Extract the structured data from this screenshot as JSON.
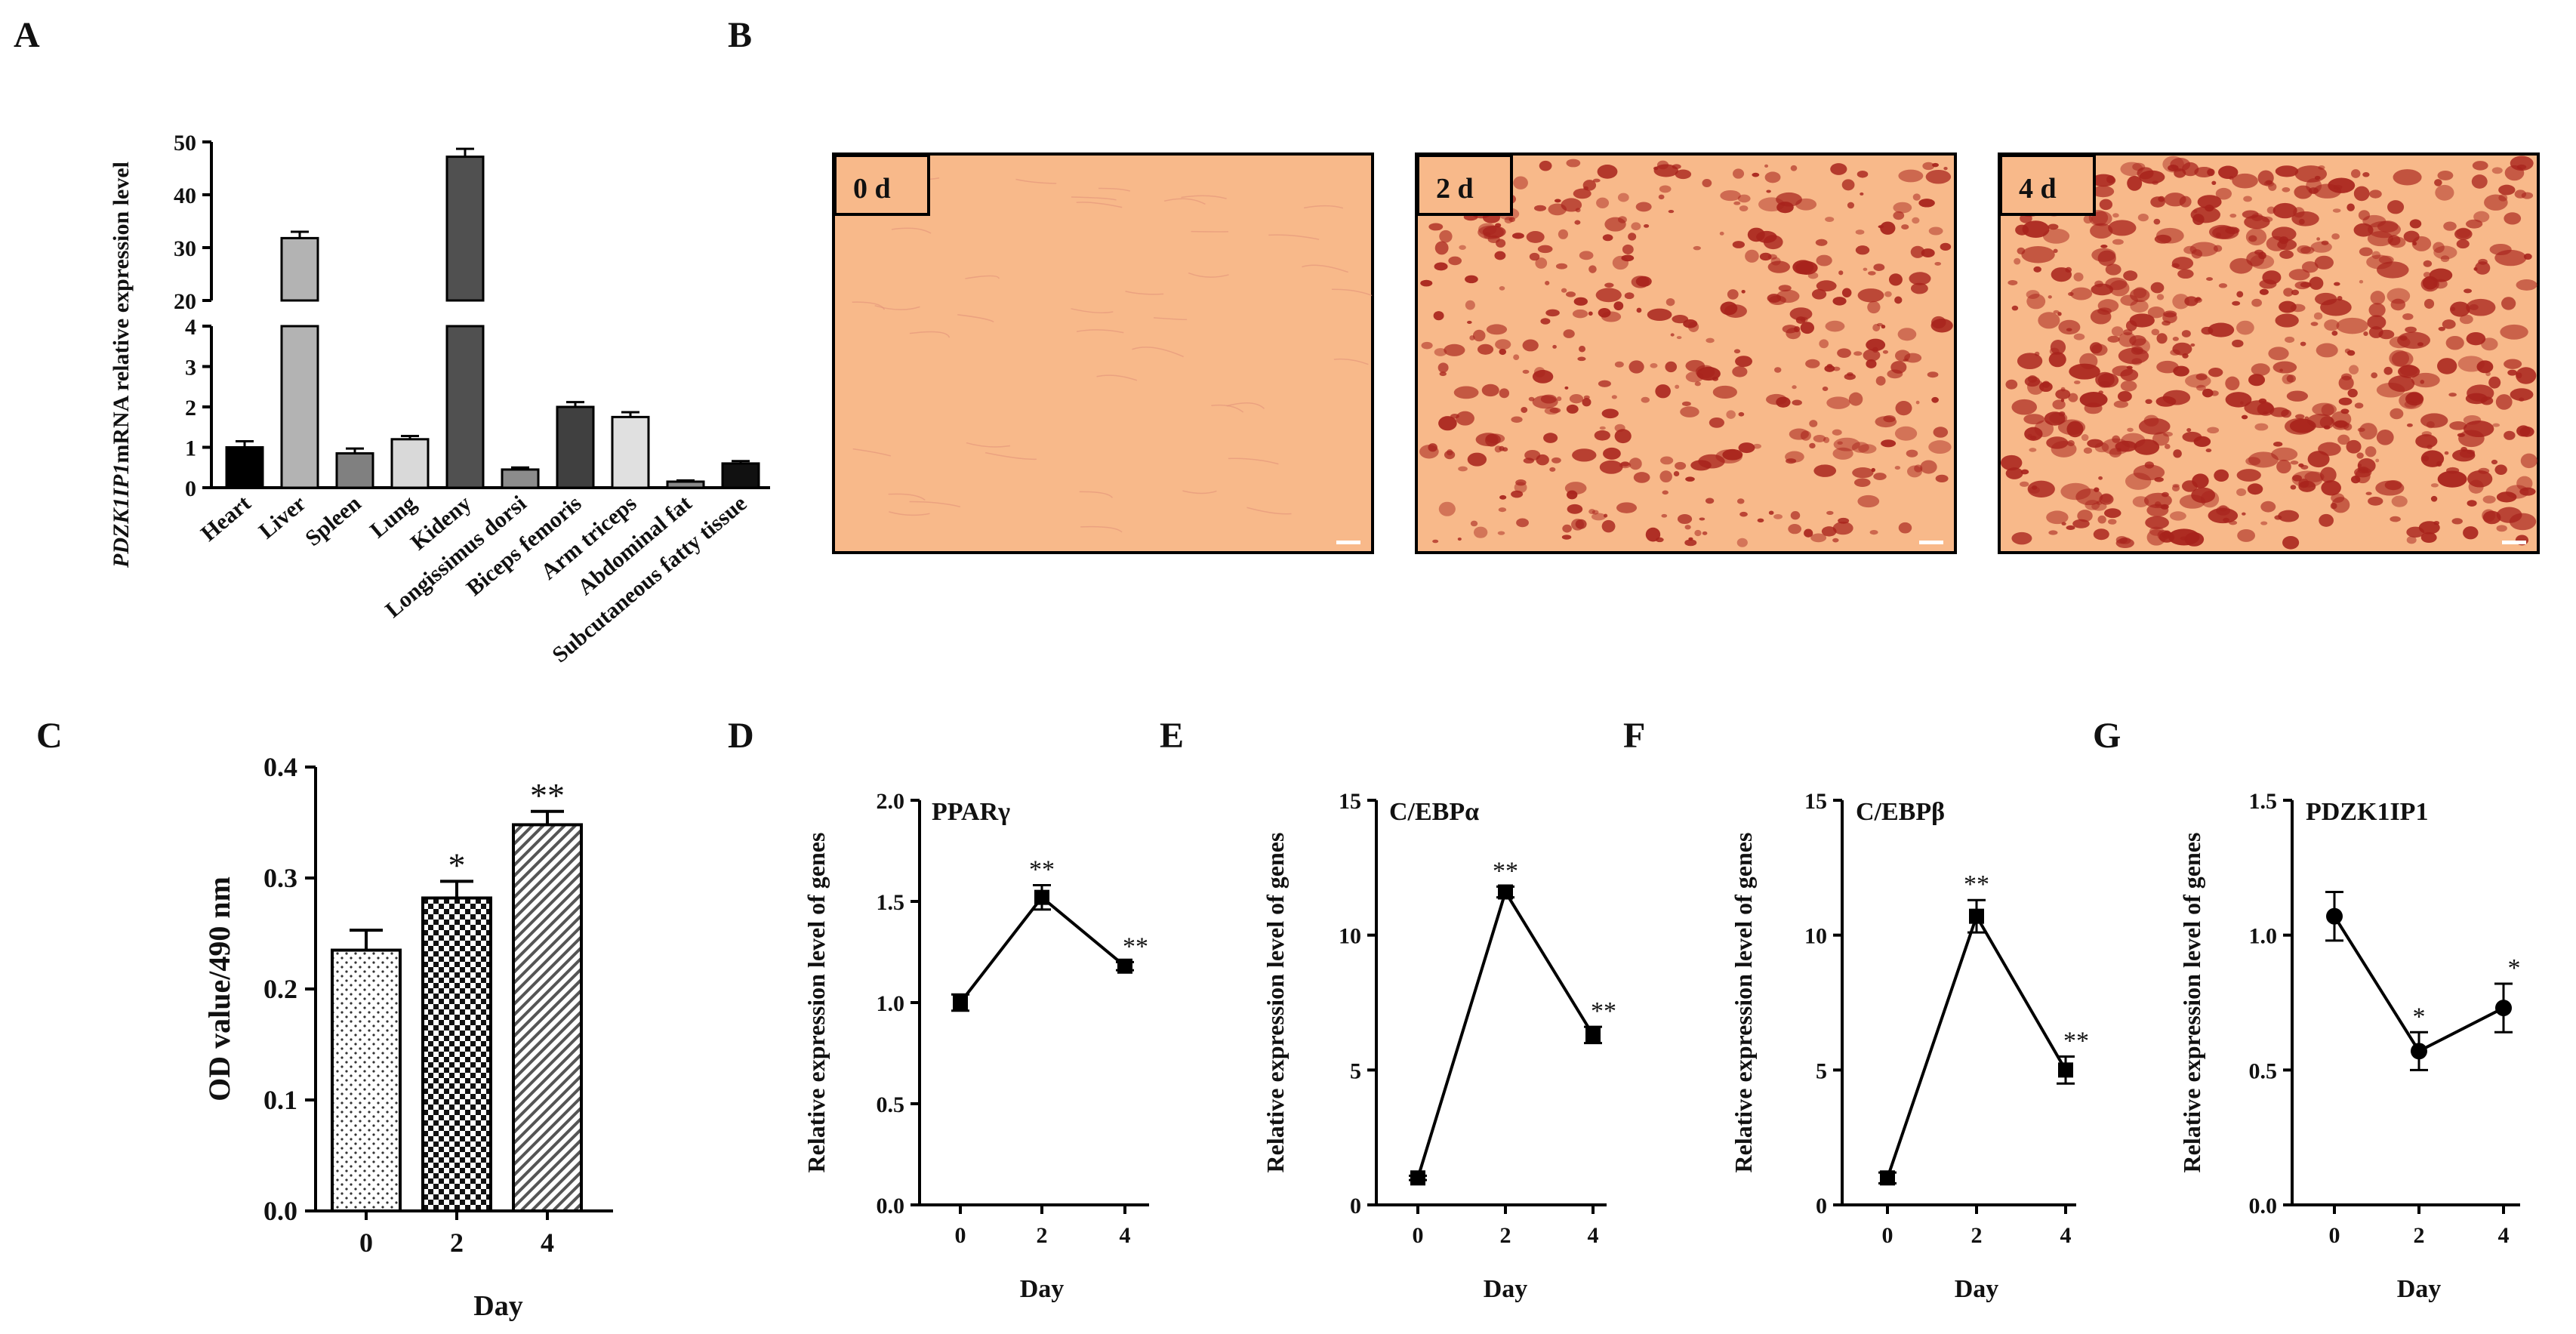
{
  "panels": {
    "A": {
      "letter": "A"
    },
    "B": {
      "letter": "B"
    },
    "C": {
      "letter": "C"
    },
    "D": {
      "letter": "D"
    },
    "E": {
      "letter": "E"
    },
    "F": {
      "letter": "F"
    },
    "G": {
      "letter": "G"
    }
  },
  "micrographs": [
    {
      "label": "0 d",
      "stain_level": 0.02
    },
    {
      "label": "2 d",
      "stain_level": 0.6
    },
    {
      "label": "4 d",
      "stain_level": 0.9
    }
  ],
  "colors": {
    "culture_background": "#f8b98a",
    "stain": "#a8231c",
    "axis": "#111111"
  },
  "chart_data": [
    {
      "id": "A",
      "type": "bar",
      "ylabel_italic": "PDZK1IP1",
      "ylabel_rest": "mRNA relative expression level",
      "broken_axis": true,
      "lower_range": [
        0,
        4
      ],
      "upper_range": [
        20,
        50
      ],
      "lower_ticks": [
        "0",
        "1",
        "2",
        "3",
        "4"
      ],
      "upper_ticks": [
        "20",
        "30",
        "40",
        "50"
      ],
      "categories": [
        "Heart",
        "Liver",
        "Spleen",
        "Lung",
        "Kideny",
        "Longissimus dorsi",
        "Biceps femoris",
        "Arm triceps",
        "Abdominal fat",
        "Subcutaneous fatty tissue"
      ],
      "values": [
        1.0,
        31.8,
        0.85,
        1.2,
        47.2,
        0.45,
        2.0,
        1.75,
        0.15,
        0.6
      ],
      "errors": [
        0.15,
        1.2,
        0.12,
        0.08,
        1.5,
        0.05,
        0.12,
        0.12,
        0.03,
        0.06
      ],
      "fills": [
        "#000000",
        "#b3b3b3",
        "#808080",
        "#d9d9d9",
        "#505050",
        "#8c8c8c",
        "#404040",
        "#e0e0e0",
        "#8a8a8a",
        "#111111"
      ]
    },
    {
      "id": "C",
      "type": "bar",
      "xlabel": "Day",
      "ylabel": "OD value/490 nm",
      "ylim": [
        0,
        0.4
      ],
      "yticks": [
        "0.0",
        "0.1",
        "0.2",
        "0.3",
        "0.4"
      ],
      "categories": [
        "0",
        "2",
        "4"
      ],
      "values": [
        0.235,
        0.282,
        0.348
      ],
      "errors": [
        0.018,
        0.015,
        0.012
      ],
      "patterns": [
        "dots",
        "checker",
        "hatch"
      ],
      "significance": [
        "",
        "*",
        "**"
      ]
    },
    {
      "id": "D",
      "type": "line",
      "gene": "PPARγ",
      "xlabel": "Day",
      "ylabel": "Relative expression level of genes",
      "x": [
        "0",
        "2",
        "4"
      ],
      "y": [
        1.0,
        1.52,
        1.18
      ],
      "errors": [
        0.04,
        0.06,
        0.02
      ],
      "ylim": [
        0,
        2.0
      ],
      "yticks": [
        "0.0",
        "0.5",
        "1.0",
        "1.5",
        "2.0"
      ],
      "marker": "square",
      "significance": [
        "",
        "**",
        "**"
      ]
    },
    {
      "id": "E",
      "type": "line",
      "gene": "C/EBPα",
      "xlabel": "Day",
      "ylabel": "Relative expression level of genes",
      "x": [
        "0",
        "2",
        "4"
      ],
      "y": [
        1.0,
        11.6,
        6.3
      ],
      "errors": [
        0.08,
        0.2,
        0.3
      ],
      "ylim": [
        0,
        15
      ],
      "yticks": [
        "0",
        "5",
        "10",
        "15"
      ],
      "marker": "square",
      "significance": [
        "",
        "**",
        "**"
      ]
    },
    {
      "id": "F",
      "type": "line",
      "gene": "C/EBPβ",
      "xlabel": "Day",
      "ylabel": "Relative expression level of genes",
      "x": [
        "0",
        "2",
        "4"
      ],
      "y": [
        1.0,
        10.7,
        5.0
      ],
      "errors": [
        0.2,
        0.6,
        0.5
      ],
      "ylim": [
        0,
        15
      ],
      "yticks": [
        "0",
        "5",
        "10",
        "15"
      ],
      "marker": "square",
      "significance": [
        "",
        "**",
        "**"
      ]
    },
    {
      "id": "G",
      "type": "line",
      "gene": "PDZK1IP1",
      "xlabel": "Day",
      "ylabel": "Relative expression level of genes",
      "x": [
        "0",
        "2",
        "4"
      ],
      "y": [
        1.07,
        0.57,
        0.73
      ],
      "errors": [
        0.09,
        0.07,
        0.09
      ],
      "ylim": [
        0,
        1.5
      ],
      "yticks": [
        "0.0",
        "0.5",
        "1.0",
        "1.5"
      ],
      "marker": "circle",
      "significance": [
        "",
        "*",
        "*"
      ]
    }
  ]
}
